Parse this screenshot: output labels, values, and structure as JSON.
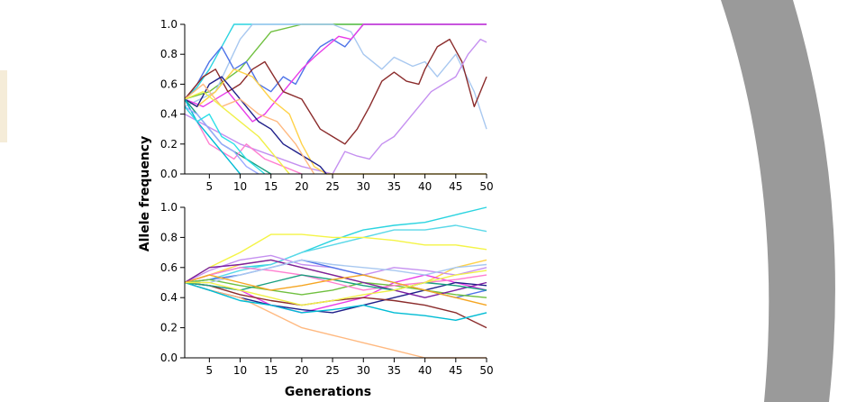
{
  "colors": {
    "background": "#ffffff",
    "decor_arc": "#9a9a9a",
    "decor_left_accent": "#f5ecd8"
  },
  "chart_data": [
    {
      "type": "line",
      "xlabel": "",
      "ylabel": "",
      "xlim": [
        1,
        50
      ],
      "ylim": [
        0,
        1
      ],
      "xticks": [
        "5",
        "10",
        "15",
        "20",
        "25",
        "30",
        "35",
        "40",
        "45",
        "50"
      ],
      "yticks": [
        "0.0",
        "0.2",
        "0.4",
        "0.6",
        "0.8",
        "1.0"
      ],
      "series": [
        {
          "color": "#2bd4e0",
          "x": [
            1,
            3,
            5,
            7,
            9,
            12,
            16,
            20,
            50
          ],
          "y": [
            0.5,
            0.58,
            0.7,
            0.85,
            1.0,
            1.0,
            1.0,
            1.0,
            1.0
          ]
        },
        {
          "color": "#70c040",
          "x": [
            1,
            5,
            10,
            13,
            15,
            20,
            30,
            40,
            50
          ],
          "y": [
            0.5,
            0.55,
            0.7,
            0.85,
            0.95,
            1.0,
            1.0,
            1.0,
            1.0
          ]
        },
        {
          "color": "#a8c8f0",
          "x": [
            1,
            6,
            10,
            12,
            20,
            25,
            28,
            30,
            33,
            35,
            38,
            40,
            42,
            45,
            48,
            50
          ],
          "y": [
            0.45,
            0.55,
            0.9,
            1.0,
            1.0,
            1.0,
            0.95,
            0.8,
            0.7,
            0.78,
            0.72,
            0.75,
            0.65,
            0.8,
            0.55,
            0.3
          ]
        },
        {
          "color": "#4f74e8",
          "x": [
            1,
            3,
            5,
            7,
            9,
            11,
            13,
            15,
            17,
            19,
            21,
            23,
            25,
            27,
            29,
            30,
            50
          ],
          "y": [
            0.5,
            0.6,
            0.75,
            0.85,
            0.7,
            0.75,
            0.6,
            0.55,
            0.65,
            0.6,
            0.75,
            0.85,
            0.9,
            0.85,
            0.95,
            1.0,
            1.0
          ]
        },
        {
          "color": "#e83be8",
          "x": [
            1,
            4,
            8,
            12,
            14,
            17,
            20,
            22,
            24,
            26,
            28,
            29,
            30,
            50
          ],
          "y": [
            0.5,
            0.45,
            0.55,
            0.35,
            0.4,
            0.55,
            0.7,
            0.78,
            0.85,
            0.92,
            0.9,
            0.95,
            1.0,
            1.0
          ]
        },
        {
          "color": "#8b2c2c",
          "x": [
            1,
            4,
            6,
            8,
            10,
            12,
            14,
            17,
            20,
            23,
            25,
            27,
            29,
            31,
            33,
            35,
            37,
            39,
            40,
            42,
            44,
            46,
            48,
            50
          ],
          "y": [
            0.5,
            0.65,
            0.7,
            0.55,
            0.6,
            0.7,
            0.75,
            0.55,
            0.5,
            0.3,
            0.25,
            0.2,
            0.3,
            0.45,
            0.62,
            0.68,
            0.62,
            0.6,
            0.7,
            0.85,
            0.9,
            0.75,
            0.45,
            0.65
          ]
        },
        {
          "color": "#c590f0",
          "x": [
            1,
            10,
            20,
            25,
            27,
            29,
            31,
            33,
            35,
            37,
            39,
            41,
            43,
            45,
            47,
            49,
            50
          ],
          "y": [
            0.4,
            0.2,
            0.05,
            0.0,
            0.15,
            0.12,
            0.1,
            0.2,
            0.25,
            0.35,
            0.45,
            0.55,
            0.6,
            0.65,
            0.8,
            0.9,
            0.88
          ]
        },
        {
          "color": "#ffd24a",
          "x": [
            1,
            3,
            6,
            9,
            12,
            15,
            18,
            20,
            22,
            24,
            50
          ],
          "y": [
            0.5,
            0.45,
            0.55,
            0.7,
            0.65,
            0.5,
            0.4,
            0.2,
            0.05,
            0.0,
            0.0
          ]
        },
        {
          "color": "#20208a",
          "x": [
            1,
            3,
            5,
            7,
            9,
            11,
            13,
            15,
            17,
            19,
            21,
            23,
            24
          ],
          "y": [
            0.5,
            0.45,
            0.6,
            0.65,
            0.55,
            0.45,
            0.35,
            0.3,
            0.2,
            0.15,
            0.1,
            0.05,
            0.0
          ]
        },
        {
          "color": "#ffb980",
          "x": [
            1,
            4,
            7,
            10,
            13,
            16,
            19,
            22
          ],
          "y": [
            0.5,
            0.6,
            0.45,
            0.5,
            0.4,
            0.35,
            0.2,
            0.0
          ]
        },
        {
          "color": "#1aa080",
          "x": [
            1,
            3,
            5,
            7,
            9,
            11,
            13,
            15
          ],
          "y": [
            0.5,
            0.4,
            0.3,
            0.2,
            0.15,
            0.1,
            0.05,
            0.0
          ]
        },
        {
          "color": "#ff7fd0",
          "x": [
            1,
            3,
            5,
            7,
            9,
            11,
            14,
            17,
            20
          ],
          "y": [
            0.45,
            0.35,
            0.2,
            0.15,
            0.1,
            0.2,
            0.1,
            0.05,
            0.0
          ]
        },
        {
          "color": "#00bcd4",
          "x": [
            1,
            3,
            5,
            7,
            9,
            10
          ],
          "y": [
            0.5,
            0.35,
            0.25,
            0.15,
            0.05,
            0.0
          ]
        },
        {
          "color": "#9aa8ff",
          "x": [
            1,
            3,
            5,
            7,
            9,
            11,
            13
          ],
          "y": [
            0.45,
            0.4,
            0.3,
            0.2,
            0.15,
            0.05,
            0.0
          ]
        },
        {
          "color": "#2ee0e8",
          "x": [
            1,
            3,
            5,
            7,
            9,
            11,
            14
          ],
          "y": [
            0.45,
            0.35,
            0.4,
            0.25,
            0.2,
            0.1,
            0.0
          ]
        },
        {
          "color": "#f0f04a",
          "x": [
            1,
            4,
            7,
            10,
            13,
            16,
            18
          ],
          "y": [
            0.5,
            0.55,
            0.45,
            0.35,
            0.25,
            0.1,
            0.0
          ]
        }
      ]
    },
    {
      "type": "line",
      "xlabel": "Generations",
      "ylabel": "Allele frequency",
      "xlim": [
        1,
        50
      ],
      "ylim": [
        0,
        1
      ],
      "xticks": [
        "5",
        "10",
        "15",
        "20",
        "25",
        "30",
        "35",
        "40",
        "45",
        "50"
      ],
      "yticks": [
        "0.0",
        "0.2",
        "0.4",
        "0.6",
        "0.8",
        "1.0"
      ],
      "series": [
        {
          "color": "#2bd4e0",
          "x": [
            1,
            5,
            10,
            15,
            20,
            25,
            30,
            35,
            40,
            45,
            50
          ],
          "y": [
            0.5,
            0.55,
            0.6,
            0.62,
            0.7,
            0.78,
            0.85,
            0.88,
            0.9,
            0.95,
            1.0
          ]
        },
        {
          "color": "#5ad8e8",
          "x": [
            1,
            5,
            10,
            15,
            20,
            25,
            30,
            35,
            40,
            45,
            50
          ],
          "y": [
            0.5,
            0.52,
            0.58,
            0.62,
            0.7,
            0.75,
            0.8,
            0.85,
            0.85,
            0.88,
            0.84
          ]
        },
        {
          "color": "#f4f446",
          "x": [
            1,
            5,
            10,
            15,
            20,
            25,
            30,
            35,
            40,
            45,
            50
          ],
          "y": [
            0.5,
            0.6,
            0.7,
            0.82,
            0.82,
            0.8,
            0.8,
            0.78,
            0.75,
            0.75,
            0.72
          ]
        },
        {
          "color": "#ffd24a",
          "x": [
            1,
            5,
            10,
            15,
            20,
            25,
            30,
            35,
            40,
            45,
            50
          ],
          "y": [
            0.5,
            0.55,
            0.62,
            0.65,
            0.6,
            0.55,
            0.5,
            0.45,
            0.5,
            0.6,
            0.65
          ]
        },
        {
          "color": "#c590f0",
          "x": [
            1,
            5,
            10,
            15,
            20,
            25,
            30,
            35,
            40,
            45,
            50
          ],
          "y": [
            0.5,
            0.58,
            0.65,
            0.68,
            0.62,
            0.6,
            0.55,
            0.6,
            0.58,
            0.55,
            0.6
          ]
        },
        {
          "color": "#e83be8",
          "x": [
            1,
            5,
            10,
            15,
            20,
            25,
            30,
            35,
            40,
            45,
            50
          ],
          "y": [
            0.5,
            0.48,
            0.45,
            0.35,
            0.3,
            0.35,
            0.4,
            0.5,
            0.55,
            0.5,
            0.45
          ]
        },
        {
          "color": "#20208a",
          "x": [
            1,
            5,
            10,
            15,
            20,
            25,
            30,
            35,
            40,
            45,
            50
          ],
          "y": [
            0.5,
            0.45,
            0.4,
            0.35,
            0.32,
            0.3,
            0.35,
            0.4,
            0.45,
            0.5,
            0.48
          ]
        },
        {
          "color": "#4f74e8",
          "x": [
            1,
            5,
            10,
            15,
            20,
            25,
            30,
            35,
            40,
            45,
            50
          ],
          "y": [
            0.5,
            0.52,
            0.55,
            0.6,
            0.65,
            0.6,
            0.55,
            0.5,
            0.45,
            0.4,
            0.45
          ]
        },
        {
          "color": "#8b2c2c",
          "x": [
            1,
            5,
            10,
            15,
            20,
            25,
            30,
            35,
            40,
            45,
            50
          ],
          "y": [
            0.5,
            0.48,
            0.42,
            0.38,
            0.35,
            0.38,
            0.4,
            0.38,
            0.35,
            0.3,
            0.2
          ]
        },
        {
          "color": "#ffb980",
          "x": [
            1,
            5,
            10,
            15,
            20,
            25,
            30,
            35,
            40,
            45,
            50
          ],
          "y": [
            0.5,
            0.45,
            0.4,
            0.3,
            0.2,
            0.15,
            0.1,
            0.05,
            0.0,
            0.0,
            0.0
          ]
        },
        {
          "color": "#70c040",
          "x": [
            1,
            5,
            10,
            15,
            20,
            25,
            30,
            35,
            40,
            45,
            50
          ],
          "y": [
            0.5,
            0.52,
            0.48,
            0.45,
            0.42,
            0.45,
            0.5,
            0.48,
            0.45,
            0.42,
            0.4
          ]
        },
        {
          "color": "#ff7fd0",
          "x": [
            1,
            5,
            10,
            15,
            20,
            25,
            30,
            35,
            40,
            45,
            50
          ],
          "y": [
            0.5,
            0.55,
            0.6,
            0.58,
            0.55,
            0.5,
            0.45,
            0.48,
            0.5,
            0.52,
            0.55
          ]
        },
        {
          "color": "#7b1fa2",
          "x": [
            1,
            5,
            10,
            15,
            20,
            25,
            30,
            35,
            40,
            45,
            50
          ],
          "y": [
            0.5,
            0.6,
            0.62,
            0.65,
            0.6,
            0.55,
            0.5,
            0.45,
            0.4,
            0.45,
            0.5
          ]
        },
        {
          "color": "#00bcd4",
          "x": [
            1,
            5,
            10,
            15,
            20,
            25,
            30,
            35,
            40,
            45,
            50
          ],
          "y": [
            0.5,
            0.45,
            0.38,
            0.35,
            0.3,
            0.32,
            0.35,
            0.3,
            0.28,
            0.25,
            0.3
          ]
        },
        {
          "color": "#a8c8f0",
          "x": [
            1,
            5,
            10,
            15,
            20,
            25,
            30,
            35,
            40,
            45,
            50
          ],
          "y": [
            0.5,
            0.5,
            0.55,
            0.6,
            0.65,
            0.62,
            0.6,
            0.58,
            0.55,
            0.6,
            0.62
          ]
        },
        {
          "color": "#1aa080",
          "x": [
            1,
            5,
            10,
            15,
            20,
            25,
            30,
            35,
            40,
            45,
            50
          ],
          "y": [
            0.5,
            0.48,
            0.45,
            0.5,
            0.55,
            0.52,
            0.48,
            0.45,
            0.5,
            0.48,
            0.45
          ]
        },
        {
          "color": "#f5a623",
          "x": [
            1,
            5,
            10,
            15,
            20,
            25,
            30,
            35,
            40,
            45,
            50
          ],
          "y": [
            0.5,
            0.55,
            0.5,
            0.45,
            0.48,
            0.52,
            0.55,
            0.5,
            0.45,
            0.4,
            0.35
          ]
        },
        {
          "color": "#f0f04a",
          "x": [
            1,
            5,
            10,
            15,
            20,
            25,
            30,
            35,
            40,
            45,
            50
          ],
          "y": [
            0.5,
            0.5,
            0.45,
            0.4,
            0.35,
            0.38,
            0.42,
            0.45,
            0.5,
            0.55,
            0.58
          ]
        }
      ]
    }
  ]
}
